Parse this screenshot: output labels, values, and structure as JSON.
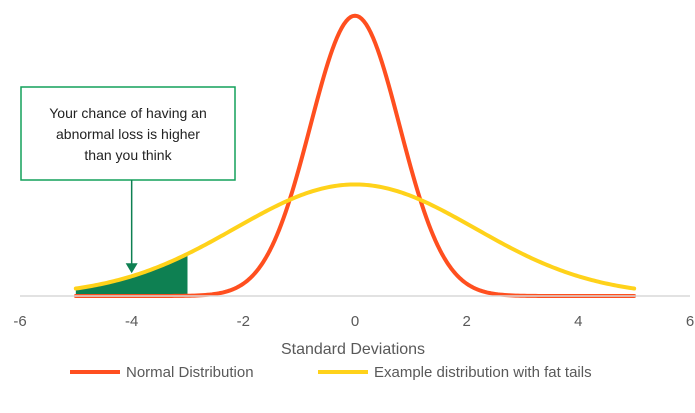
{
  "chart_data": {
    "type": "line",
    "title": "",
    "xlabel": "Standard Deviations",
    "ylabel": "",
    "xlim": [
      -6,
      6
    ],
    "ylim": [
      0,
      1
    ],
    "xticks": [
      -6,
      -4,
      -2,
      0,
      2,
      4,
      6
    ],
    "grid": false,
    "legend_position": "bottom",
    "series": [
      {
        "name": "Normal Distribution",
        "color": "#ff4f1f",
        "mean": 0,
        "sd": 0.8,
        "peak": 0.98,
        "x_range": [
          -5,
          5
        ]
      },
      {
        "name": "Example distribution with fat tails",
        "color": "#ffd21a",
        "mean": 0,
        "sd": 2.15,
        "peak": 0.39,
        "x_range": [
          -5,
          5
        ]
      }
    ],
    "shaded_region": {
      "series_index": 1,
      "x_from": -5,
      "x_to": -3,
      "color": "#0e8052"
    },
    "annotation": {
      "lines": [
        "Your chance of having an",
        "abnormal loss is higher",
        "than you think"
      ],
      "border_color": "#12a15a",
      "arrow_x": -4,
      "arrow_color": "#0e8052"
    }
  }
}
